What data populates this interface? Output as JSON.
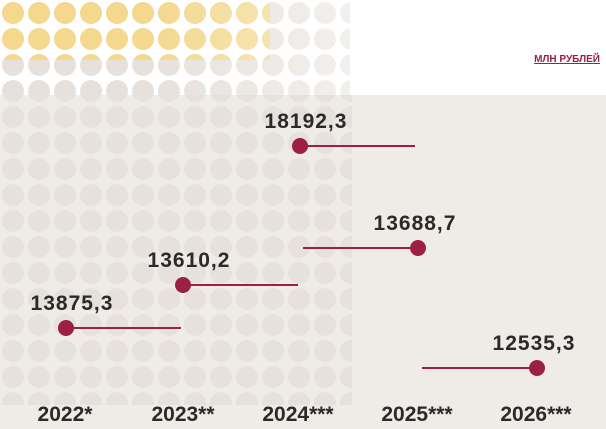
{
  "chart_data": {
    "type": "dot",
    "unit": "МЛН РУБЛЕЙ",
    "categories": [
      "2022*",
      "2023**",
      "2024***",
      "2025***",
      "2026***"
    ],
    "values": [
      13875.3,
      13610.2,
      18192.3,
      13688.7,
      12535.3
    ],
    "value_labels": [
      "13875,3",
      "13610,2",
      "18192,3",
      "13688,7",
      "12535,3"
    ],
    "color": "#9c1f45"
  }
}
